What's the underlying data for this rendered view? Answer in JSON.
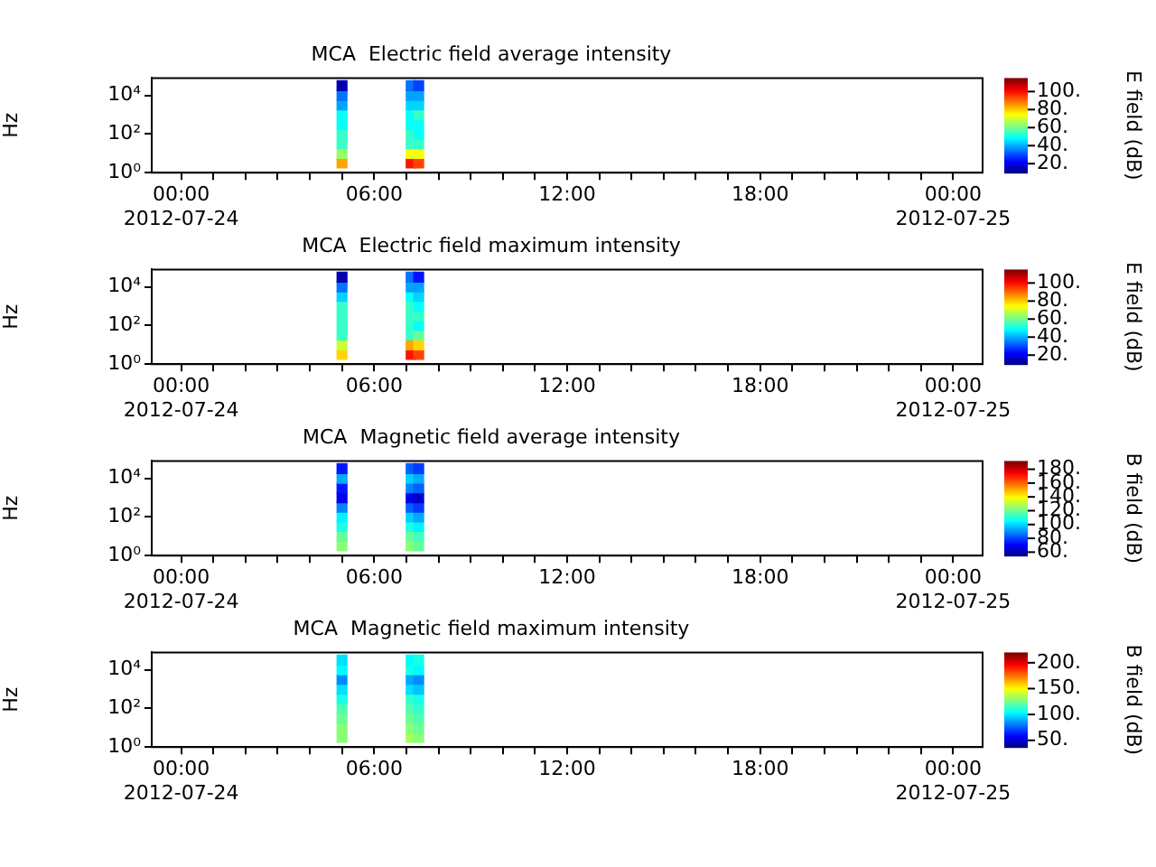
{
  "chart_data": [
    {
      "type": "scatter",
      "title": "MCA  Electric field average intensity",
      "ylabel": "Hz",
      "clabel": "E field (dB)",
      "marker": "square",
      "grid": false,
      "legend": false,
      "log": "y",
      "x": [
        "2012-07-24T05:00",
        "2012-07-24T05:00",
        "2012-07-24T05:00",
        "2012-07-24T05:00",
        "2012-07-24T05:00",
        "2012-07-24T05:00",
        "2012-07-24T05:00",
        "2012-07-24T05:00",
        "2012-07-24T05:00",
        "2012-07-24T07:09",
        "2012-07-24T07:09",
        "2012-07-24T07:09",
        "2012-07-24T07:09",
        "2012-07-24T07:09",
        "2012-07-24T07:09",
        "2012-07-24T07:09",
        "2012-07-24T07:09",
        "2012-07-24T07:09",
        "2012-07-24T07:23",
        "2012-07-24T07:23",
        "2012-07-24T07:23",
        "2012-07-24T07:23",
        "2012-07-24T07:23",
        "2012-07-24T07:23",
        "2012-07-24T07:23",
        "2012-07-24T07:23",
        "2012-07-24T07:23"
      ],
      "values": [
        3.2,
        10,
        32,
        100,
        320,
        1000,
        3200,
        10000,
        32000,
        3.2,
        10,
        32,
        100,
        320,
        1000,
        3200,
        10000,
        32000,
        3.2,
        10,
        32,
        100,
        320,
        1000,
        3200,
        10000,
        32000
      ],
      "cvalues": [
        85,
        65,
        55,
        55,
        50,
        50,
        40,
        35,
        15,
        100,
        75,
        55,
        55,
        50,
        50,
        45,
        40,
        35,
        95,
        75,
        55,
        50,
        50,
        55,
        45,
        40,
        30
      ],
      "xlim": [
        "2012-07-23T23:05",
        "2012-07-25T00:55"
      ],
      "xticks": [
        {
          "value": "2012-07-24T00:00",
          "label": "00:00\n2012-07-24"
        },
        {
          "value": "2012-07-24T01:00",
          "label": null
        },
        {
          "value": "2012-07-24T02:00",
          "label": null
        },
        {
          "value": "2012-07-24T03:00",
          "label": null
        },
        {
          "value": "2012-07-24T04:00",
          "label": null
        },
        {
          "value": "2012-07-24T05:00",
          "label": null
        },
        {
          "value": "2012-07-24T06:00",
          "label": "06:00"
        },
        {
          "value": "2012-07-24T07:00",
          "label": null
        },
        {
          "value": "2012-07-24T08:00",
          "label": null
        },
        {
          "value": "2012-07-24T09:00",
          "label": null
        },
        {
          "value": "2012-07-24T10:00",
          "label": null
        },
        {
          "value": "2012-07-24T11:00",
          "label": null
        },
        {
          "value": "2012-07-24T12:00",
          "label": "12:00"
        },
        {
          "value": "2012-07-24T13:00",
          "label": null
        },
        {
          "value": "2012-07-24T14:00",
          "label": null
        },
        {
          "value": "2012-07-24T15:00",
          "label": null
        },
        {
          "value": "2012-07-24T16:00",
          "label": null
        },
        {
          "value": "2012-07-24T17:00",
          "label": null
        },
        {
          "value": "2012-07-24T18:00",
          "label": "18:00"
        },
        {
          "value": "2012-07-24T19:00",
          "label": null
        },
        {
          "value": "2012-07-24T20:00",
          "label": null
        },
        {
          "value": "2012-07-24T21:00",
          "label": null
        },
        {
          "value": "2012-07-24T22:00",
          "label": null
        },
        {
          "value": "2012-07-24T23:00",
          "label": null
        },
        {
          "value": "2012-07-25T00:00",
          "label": "00:00\n2012-07-25"
        }
      ],
      "ylim": [
        1,
        80000
      ],
      "yticks": [
        {
          "value": 1,
          "label": "10⁰"
        },
        {
          "value": 100,
          "label": "10²"
        },
        {
          "value": 10000,
          "label": "10⁴"
        }
      ],
      "clim": [
        10,
        115
      ],
      "cticks": [
        {
          "value": 20,
          "label": "20."
        },
        {
          "value": 40,
          "label": "40."
        },
        {
          "value": 60,
          "label": "60."
        },
        {
          "value": 80,
          "label": "80."
        },
        {
          "value": 100,
          "label": "100."
        }
      ]
    },
    {
      "type": "scatter",
      "title": "MCA  Electric field maximum intensity",
      "ylabel": "Hz",
      "clabel": "E field (dB)",
      "marker": "square",
      "grid": false,
      "legend": false,
      "log": "y",
      "x": [
        "2012-07-24T05:00",
        "2012-07-24T05:00",
        "2012-07-24T05:00",
        "2012-07-24T05:00",
        "2012-07-24T05:00",
        "2012-07-24T05:00",
        "2012-07-24T05:00",
        "2012-07-24T05:00",
        "2012-07-24T05:00",
        "2012-07-24T07:09",
        "2012-07-24T07:09",
        "2012-07-24T07:09",
        "2012-07-24T07:09",
        "2012-07-24T07:09",
        "2012-07-24T07:09",
        "2012-07-24T07:09",
        "2012-07-24T07:09",
        "2012-07-24T07:09",
        "2012-07-24T07:23",
        "2012-07-24T07:23",
        "2012-07-24T07:23",
        "2012-07-24T07:23",
        "2012-07-24T07:23",
        "2012-07-24T07:23",
        "2012-07-24T07:23",
        "2012-07-24T07:23",
        "2012-07-24T07:23"
      ],
      "values": [
        3.2,
        10,
        32,
        100,
        320,
        1000,
        3200,
        10000,
        32000,
        3.2,
        10,
        32,
        100,
        320,
        1000,
        3200,
        10000,
        32000,
        3.2,
        10,
        32,
        100,
        320,
        1000,
        3200,
        10000,
        32000
      ],
      "cvalues": [
        80,
        70,
        55,
        55,
        55,
        55,
        45,
        35,
        15,
        100,
        85,
        55,
        55,
        55,
        55,
        50,
        40,
        35,
        95,
        80,
        60,
        50,
        55,
        50,
        45,
        40,
        25
      ],
      "xlim": [
        "2012-07-23T23:05",
        "2012-07-25T00:55"
      ],
      "xticks": [
        {
          "value": "2012-07-24T00:00",
          "label": "00:00\n2012-07-24"
        },
        {
          "value": "2012-07-24T01:00",
          "label": null
        },
        {
          "value": "2012-07-24T02:00",
          "label": null
        },
        {
          "value": "2012-07-24T03:00",
          "label": null
        },
        {
          "value": "2012-07-24T04:00",
          "label": null
        },
        {
          "value": "2012-07-24T05:00",
          "label": null
        },
        {
          "value": "2012-07-24T06:00",
          "label": "06:00"
        },
        {
          "value": "2012-07-24T07:00",
          "label": null
        },
        {
          "value": "2012-07-24T08:00",
          "label": null
        },
        {
          "value": "2012-07-24T09:00",
          "label": null
        },
        {
          "value": "2012-07-24T10:00",
          "label": null
        },
        {
          "value": "2012-07-24T11:00",
          "label": null
        },
        {
          "value": "2012-07-24T12:00",
          "label": "12:00"
        },
        {
          "value": "2012-07-24T13:00",
          "label": null
        },
        {
          "value": "2012-07-24T14:00",
          "label": null
        },
        {
          "value": "2012-07-24T15:00",
          "label": null
        },
        {
          "value": "2012-07-24T16:00",
          "label": null
        },
        {
          "value": "2012-07-24T17:00",
          "label": null
        },
        {
          "value": "2012-07-24T18:00",
          "label": "18:00"
        },
        {
          "value": "2012-07-24T19:00",
          "label": null
        },
        {
          "value": "2012-07-24T20:00",
          "label": null
        },
        {
          "value": "2012-07-24T21:00",
          "label": null
        },
        {
          "value": "2012-07-24T22:00",
          "label": null
        },
        {
          "value": "2012-07-24T23:00",
          "label": null
        },
        {
          "value": "2012-07-25T00:00",
          "label": "00:00\n2012-07-25"
        }
      ],
      "ylim": [
        1,
        80000
      ],
      "yticks": [
        {
          "value": 1,
          "label": "10⁰"
        },
        {
          "value": 100,
          "label": "10²"
        },
        {
          "value": 10000,
          "label": "10⁴"
        }
      ],
      "clim": [
        10,
        115
      ],
      "cticks": [
        {
          "value": 20,
          "label": "20."
        },
        {
          "value": 40,
          "label": "40."
        },
        {
          "value": 60,
          "label": "60."
        },
        {
          "value": 80,
          "label": "80."
        },
        {
          "value": 100,
          "label": "100."
        }
      ]
    },
    {
      "type": "scatter",
      "title": "MCA  Magnetic field average intensity",
      "ylabel": "Hz",
      "clabel": "B field (dB)",
      "marker": "square",
      "grid": false,
      "legend": false,
      "log": "y",
      "x": [
        "2012-07-24T05:00",
        "2012-07-24T05:00",
        "2012-07-24T05:00",
        "2012-07-24T05:00",
        "2012-07-24T05:00",
        "2012-07-24T05:00",
        "2012-07-24T05:00",
        "2012-07-24T05:00",
        "2012-07-24T05:00",
        "2012-07-24T07:09",
        "2012-07-24T07:09",
        "2012-07-24T07:09",
        "2012-07-24T07:09",
        "2012-07-24T07:09",
        "2012-07-24T07:09",
        "2012-07-24T07:09",
        "2012-07-24T07:09",
        "2012-07-24T07:09",
        "2012-07-24T07:23",
        "2012-07-24T07:23",
        "2012-07-24T07:23",
        "2012-07-24T07:23",
        "2012-07-24T07:23",
        "2012-07-24T07:23",
        "2012-07-24T07:23",
        "2012-07-24T07:23",
        "2012-07-24T07:23"
      ],
      "values": [
        3.2,
        10,
        32,
        100,
        320,
        1000,
        3200,
        10000,
        32000,
        3.2,
        10,
        32,
        100,
        320,
        1000,
        3200,
        10000,
        32000,
        3.2,
        10,
        32,
        100,
        320,
        1000,
        3200,
        10000,
        32000
      ],
      "cvalues": [
        125,
        120,
        110,
        105,
        90,
        70,
        75,
        95,
        75,
        125,
        120,
        110,
        100,
        85,
        70,
        90,
        100,
        85,
        120,
        115,
        105,
        95,
        80,
        65,
        85,
        95,
        80
      ],
      "xlim": [
        "2012-07-23T23:05",
        "2012-07-25T00:55"
      ],
      "xticks": [
        {
          "value": "2012-07-24T00:00",
          "label": "00:00\n2012-07-24"
        },
        {
          "value": "2012-07-24T01:00",
          "label": null
        },
        {
          "value": "2012-07-24T02:00",
          "label": null
        },
        {
          "value": "2012-07-24T03:00",
          "label": null
        },
        {
          "value": "2012-07-24T04:00",
          "label": null
        },
        {
          "value": "2012-07-24T05:00",
          "label": null
        },
        {
          "value": "2012-07-24T06:00",
          "label": "06:00"
        },
        {
          "value": "2012-07-24T07:00",
          "label": null
        },
        {
          "value": "2012-07-24T08:00",
          "label": null
        },
        {
          "value": "2012-07-24T09:00",
          "label": null
        },
        {
          "value": "2012-07-24T10:00",
          "label": null
        },
        {
          "value": "2012-07-24T11:00",
          "label": null
        },
        {
          "value": "2012-07-24T12:00",
          "label": "12:00"
        },
        {
          "value": "2012-07-24T13:00",
          "label": null
        },
        {
          "value": "2012-07-24T14:00",
          "label": null
        },
        {
          "value": "2012-07-24T15:00",
          "label": null
        },
        {
          "value": "2012-07-24T16:00",
          "label": null
        },
        {
          "value": "2012-07-24T17:00",
          "label": null
        },
        {
          "value": "2012-07-24T18:00",
          "label": "18:00"
        },
        {
          "value": "2012-07-24T19:00",
          "label": null
        },
        {
          "value": "2012-07-24T20:00",
          "label": null
        },
        {
          "value": "2012-07-24T21:00",
          "label": null
        },
        {
          "value": "2012-07-24T22:00",
          "label": null
        },
        {
          "value": "2012-07-24T23:00",
          "label": null
        },
        {
          "value": "2012-07-25T00:00",
          "label": "00:00\n2012-07-25"
        }
      ],
      "ylim": [
        1,
        80000
      ],
      "yticks": [
        {
          "value": 1,
          "label": "10⁰"
        },
        {
          "value": 100,
          "label": "10²"
        },
        {
          "value": 10000,
          "label": "10⁴"
        }
      ],
      "clim": [
        55,
        192
      ],
      "cticks": [
        {
          "value": 60,
          "label": "60."
        },
        {
          "value": 80,
          "label": "80."
        },
        {
          "value": 100,
          "label": "100."
        },
        {
          "value": 120,
          "label": "120."
        },
        {
          "value": 140,
          "label": "140."
        },
        {
          "value": 160,
          "label": "160."
        },
        {
          "value": 180,
          "label": "180."
        }
      ]
    },
    {
      "type": "scatter",
      "title": "MCA  Magnetic field maximum intensity",
      "ylabel": "Hz",
      "clabel": "B field (dB)",
      "marker": "square",
      "grid": false,
      "legend": false,
      "log": "y",
      "x": [
        "2012-07-24T05:00",
        "2012-07-24T05:00",
        "2012-07-24T05:00",
        "2012-07-24T05:00",
        "2012-07-24T05:00",
        "2012-07-24T05:00",
        "2012-07-24T05:00",
        "2012-07-24T05:00",
        "2012-07-24T05:00",
        "2012-07-24T07:09",
        "2012-07-24T07:09",
        "2012-07-24T07:09",
        "2012-07-24T07:09",
        "2012-07-24T07:09",
        "2012-07-24T07:09",
        "2012-07-24T07:09",
        "2012-07-24T07:09",
        "2012-07-24T07:09",
        "2012-07-24T07:23",
        "2012-07-24T07:23",
        "2012-07-24T07:23",
        "2012-07-24T07:23",
        "2012-07-24T07:23",
        "2012-07-24T07:23",
        "2012-07-24T07:23",
        "2012-07-24T07:23",
        "2012-07-24T07:23"
      ],
      "values": [
        3.2,
        10,
        32,
        100,
        320,
        1000,
        3200,
        10000,
        32000,
        3.2,
        10,
        32,
        100,
        320,
        1000,
        3200,
        10000,
        32000,
        3.2,
        10,
        32,
        100,
        320,
        1000,
        3200,
        10000,
        32000
      ],
      "cvalues": [
        130,
        130,
        125,
        120,
        110,
        100,
        85,
        105,
        100,
        135,
        130,
        125,
        120,
        115,
        100,
        90,
        110,
        105,
        130,
        125,
        120,
        115,
        110,
        95,
        85,
        105,
        110
      ],
      "xlim": [
        "2012-07-23T23:05",
        "2012-07-25T00:55"
      ],
      "xticks": [
        {
          "value": "2012-07-24T00:00",
          "label": "00:00\n2012-07-24"
        },
        {
          "value": "2012-07-24T01:00",
          "label": null
        },
        {
          "value": "2012-07-24T02:00",
          "label": null
        },
        {
          "value": "2012-07-24T03:00",
          "label": null
        },
        {
          "value": "2012-07-24T04:00",
          "label": null
        },
        {
          "value": "2012-07-24T05:00",
          "label": null
        },
        {
          "value": "2012-07-24T06:00",
          "label": "06:00"
        },
        {
          "value": "2012-07-24T07:00",
          "label": null
        },
        {
          "value": "2012-07-24T08:00",
          "label": null
        },
        {
          "value": "2012-07-24T09:00",
          "label": null
        },
        {
          "value": "2012-07-24T10:00",
          "label": null
        },
        {
          "value": "2012-07-24T11:00",
          "label": null
        },
        {
          "value": "2012-07-24T12:00",
          "label": "12:00"
        },
        {
          "value": "2012-07-24T13:00",
          "label": null
        },
        {
          "value": "2012-07-24T14:00",
          "label": null
        },
        {
          "value": "2012-07-24T15:00",
          "label": null
        },
        {
          "value": "2012-07-24T16:00",
          "label": null
        },
        {
          "value": "2012-07-24T17:00",
          "label": null
        },
        {
          "value": "2012-07-24T18:00",
          "label": "18:00"
        },
        {
          "value": "2012-07-24T19:00",
          "label": null
        },
        {
          "value": "2012-07-24T20:00",
          "label": null
        },
        {
          "value": "2012-07-24T21:00",
          "label": null
        },
        {
          "value": "2012-07-24T22:00",
          "label": null
        },
        {
          "value": "2012-07-24T23:00",
          "label": null
        },
        {
          "value": "2012-07-25T00:00",
          "label": "00:00\n2012-07-25"
        }
      ],
      "ylim": [
        1,
        80000
      ],
      "yticks": [
        {
          "value": 1,
          "label": "10⁰"
        },
        {
          "value": 100,
          "label": "10²"
        },
        {
          "value": 10000,
          "label": "10⁴"
        }
      ],
      "clim": [
        37,
        220
      ],
      "cticks": [
        {
          "value": 50,
          "label": "50."
        },
        {
          "value": 100,
          "label": "100."
        },
        {
          "value": 150,
          "label": "150."
        },
        {
          "value": 200,
          "label": "200."
        }
      ]
    }
  ]
}
